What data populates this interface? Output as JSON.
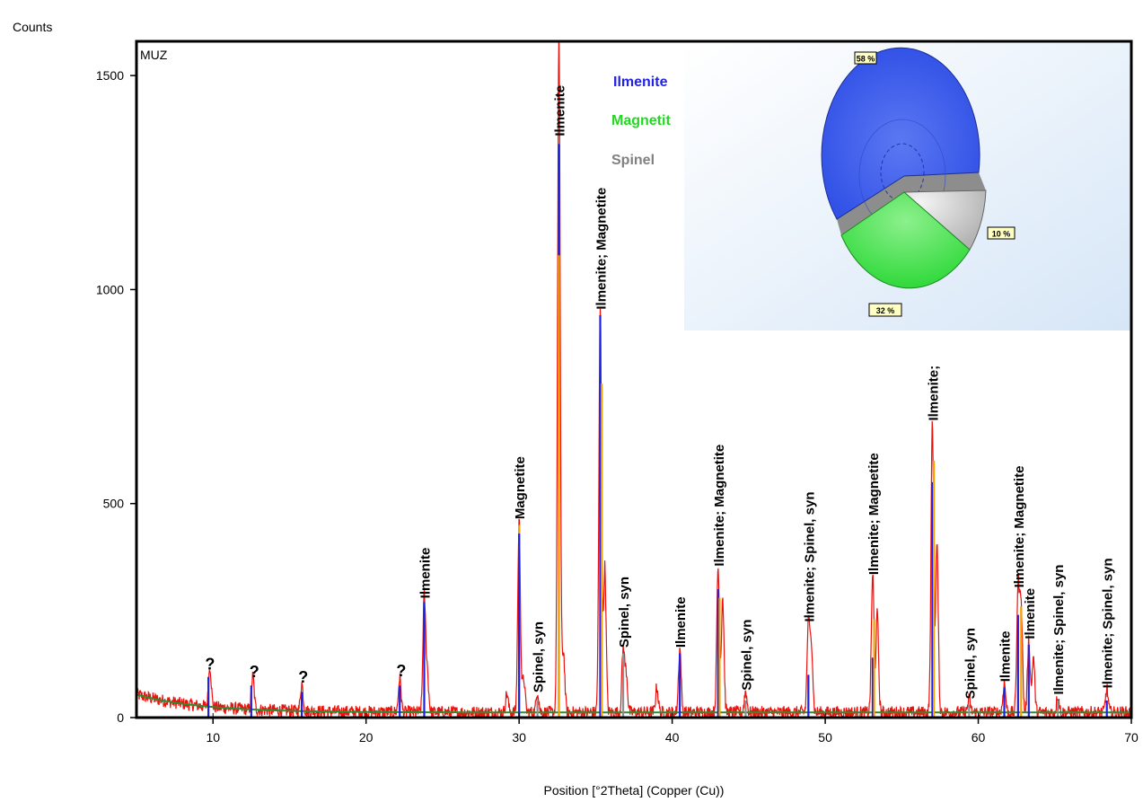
{
  "chart_data": {
    "type": "line",
    "title": "",
    "xlabel": "Position [°2Theta] (Copper (Cu))",
    "ylabel": "Counts",
    "xlim": [
      5,
      70
    ],
    "ylim": [
      0,
      1580
    ],
    "x_ticks": [
      "10",
      "20",
      "30",
      "40",
      "50",
      "60",
      "70"
    ],
    "y_ticks": [
      "0",
      "500",
      "1000",
      "1500"
    ],
    "sample_label": "MUZ",
    "grid": false,
    "legend": [
      "Ilmenite",
      "Magnetite",
      "Spinel"
    ],
    "series_colors": {
      "measured": "#e8120e",
      "background": "#2e8b2e",
      "ilmenite": "#2020e0",
      "magnetite": "#f5a300",
      "spinel": "#909090"
    },
    "peaks": [
      {
        "x": 9.8,
        "y": 95
      },
      {
        "x": 12.6,
        "y": 78
      },
      {
        "x": 15.8,
        "y": 65
      },
      {
        "x": 22.2,
        "y": 80
      },
      {
        "x": 23.8,
        "y": 270
      },
      {
        "x": 24.0,
        "y": 95
      },
      {
        "x": 29.2,
        "y": 45
      },
      {
        "x": 30.0,
        "y": 450
      },
      {
        "x": 30.3,
        "y": 80
      },
      {
        "x": 31.2,
        "y": 50
      },
      {
        "x": 32.6,
        "y": 1580
      },
      {
        "x": 32.9,
        "y": 140
      },
      {
        "x": 35.3,
        "y": 940
      },
      {
        "x": 35.6,
        "y": 340
      },
      {
        "x": 36.8,
        "y": 150
      },
      {
        "x": 37.0,
        "y": 90
      },
      {
        "x": 39.0,
        "y": 60
      },
      {
        "x": 40.5,
        "y": 150
      },
      {
        "x": 43.0,
        "y": 340
      },
      {
        "x": 43.3,
        "y": 270
      },
      {
        "x": 44.8,
        "y": 50
      },
      {
        "x": 48.9,
        "y": 210
      },
      {
        "x": 49.1,
        "y": 160
      },
      {
        "x": 53.1,
        "y": 320
      },
      {
        "x": 53.4,
        "y": 230
      },
      {
        "x": 57.0,
        "y": 680
      },
      {
        "x": 57.3,
        "y": 390
      },
      {
        "x": 59.4,
        "y": 30
      },
      {
        "x": 61.7,
        "y": 70
      },
      {
        "x": 62.6,
        "y": 290
      },
      {
        "x": 62.8,
        "y": 260
      },
      {
        "x": 63.3,
        "y": 170
      },
      {
        "x": 63.6,
        "y": 130
      },
      {
        "x": 65.2,
        "y": 40
      },
      {
        "x": 68.4,
        "y": 55
      }
    ],
    "reference_sticks": [
      {
        "x": 9.7,
        "y": 95,
        "phase": "ilmenite"
      },
      {
        "x": 12.5,
        "y": 75,
        "phase": "ilmenite"
      },
      {
        "x": 15.8,
        "y": 60,
        "phase": "ilmenite"
      },
      {
        "x": 22.2,
        "y": 75,
        "phase": "ilmenite"
      },
      {
        "x": 23.8,
        "y": 270,
        "phase": "ilmenite"
      },
      {
        "x": 30.0,
        "y": 450,
        "phase": "magnetite"
      },
      {
        "x": 30.0,
        "y": 430,
        "phase": "ilmenite"
      },
      {
        "x": 31.2,
        "y": 40,
        "phase": "spinel"
      },
      {
        "x": 32.6,
        "y": 1340,
        "phase": "ilmenite"
      },
      {
        "x": 32.6,
        "y": 1080,
        "phase": "magnetite"
      },
      {
        "x": 35.3,
        "y": 940,
        "phase": "ilmenite"
      },
      {
        "x": 35.4,
        "y": 780,
        "phase": "magnetite"
      },
      {
        "x": 36.8,
        "y": 150,
        "phase": "spinel"
      },
      {
        "x": 40.5,
        "y": 150,
        "phase": "ilmenite"
      },
      {
        "x": 43.0,
        "y": 300,
        "phase": "ilmenite"
      },
      {
        "x": 43.1,
        "y": 280,
        "phase": "magnetite"
      },
      {
        "x": 44.8,
        "y": 40,
        "phase": "spinel"
      },
      {
        "x": 48.9,
        "y": 100,
        "phase": "ilmenite"
      },
      {
        "x": 53.1,
        "y": 140,
        "phase": "ilmenite"
      },
      {
        "x": 53.2,
        "y": 230,
        "phase": "magnetite"
      },
      {
        "x": 57.0,
        "y": 550,
        "phase": "ilmenite"
      },
      {
        "x": 57.1,
        "y": 600,
        "phase": "magnetite"
      },
      {
        "x": 59.4,
        "y": 30,
        "phase": "spinel"
      },
      {
        "x": 61.7,
        "y": 70,
        "phase": "ilmenite"
      },
      {
        "x": 62.6,
        "y": 240,
        "phase": "ilmenite"
      },
      {
        "x": 62.8,
        "y": 260,
        "phase": "magnetite"
      },
      {
        "x": 63.3,
        "y": 170,
        "phase": "ilmenite"
      },
      {
        "x": 65.2,
        "y": 40,
        "phase": "spinel"
      },
      {
        "x": 68.4,
        "y": 40,
        "phase": "ilmenite"
      }
    ],
    "annotations": [
      {
        "text": "?",
        "x": 9.8,
        "y": 95,
        "vertical": false
      },
      {
        "text": "?",
        "x": 12.7,
        "y": 78,
        "vertical": false
      },
      {
        "text": "?",
        "x": 15.9,
        "y": 65,
        "vertical": false
      },
      {
        "text": "?",
        "x": 22.3,
        "y": 80,
        "vertical": false
      },
      {
        "text": "Ilmenite",
        "x": 23.8,
        "y": 270,
        "vertical": true
      },
      {
        "text": "Magnetite",
        "x": 30.0,
        "y": 455,
        "vertical": true
      },
      {
        "text": "Spinel, syn",
        "x": 31.2,
        "y": 50,
        "vertical": true
      },
      {
        "text": "Ilmenite",
        "x": 32.6,
        "y": 1350,
        "vertical": true
      },
      {
        "text": "Ilmenite; Magnetite",
        "x": 35.3,
        "y": 945,
        "vertical": true
      },
      {
        "text": "Spinel, syn",
        "x": 36.8,
        "y": 155,
        "vertical": true
      },
      {
        "text": "Ilmenite",
        "x": 40.5,
        "y": 155,
        "vertical": true
      },
      {
        "text": "Ilmenite; Magnetite",
        "x": 43.0,
        "y": 345,
        "vertical": true
      },
      {
        "text": "Spinel, syn",
        "x": 44.8,
        "y": 55,
        "vertical": true
      },
      {
        "text": "Ilmenite; Spinel, syn",
        "x": 48.9,
        "y": 215,
        "vertical": true
      },
      {
        "text": "Ilmenite; Magnetite",
        "x": 53.1,
        "y": 325,
        "vertical": true
      },
      {
        "text": "Ilmenite;",
        "x": 57.0,
        "y": 685,
        "vertical": true
      },
      {
        "text": "Spinel, syn",
        "x": 59.4,
        "y": 35,
        "vertical": true
      },
      {
        "text": "Ilmenite",
        "x": 61.7,
        "y": 75,
        "vertical": true
      },
      {
        "text": "Ilmenite; Magnetite",
        "x": 62.6,
        "y": 295,
        "vertical": true
      },
      {
        "text": "Ilmenite",
        "x": 63.3,
        "y": 175,
        "vertical": true
      },
      {
        "text": "Ilmenite; Spinel, syn",
        "x": 65.2,
        "y": 45,
        "vertical": true
      },
      {
        "text": "Ilmenite; Spinel, syn",
        "x": 68.4,
        "y": 60,
        "vertical": true
      }
    ]
  },
  "inset_pie": {
    "legend": [
      {
        "name": "Ilmenite",
        "color": "#2121e8"
      },
      {
        "name": "Magnetit",
        "color": "#22d822"
      },
      {
        "name": "Spinel",
        "color": "#808080"
      }
    ],
    "slices": [
      {
        "name": "Ilmenite",
        "value": 58,
        "label": "58 %",
        "color": "#3a5fef"
      },
      {
        "name": "Spinel",
        "value": 10,
        "label": "10 %",
        "color": "#c4c4c4"
      },
      {
        "name": "Magnetite",
        "value": 32,
        "label": "32 %",
        "color": "#3de040"
      }
    ]
  }
}
